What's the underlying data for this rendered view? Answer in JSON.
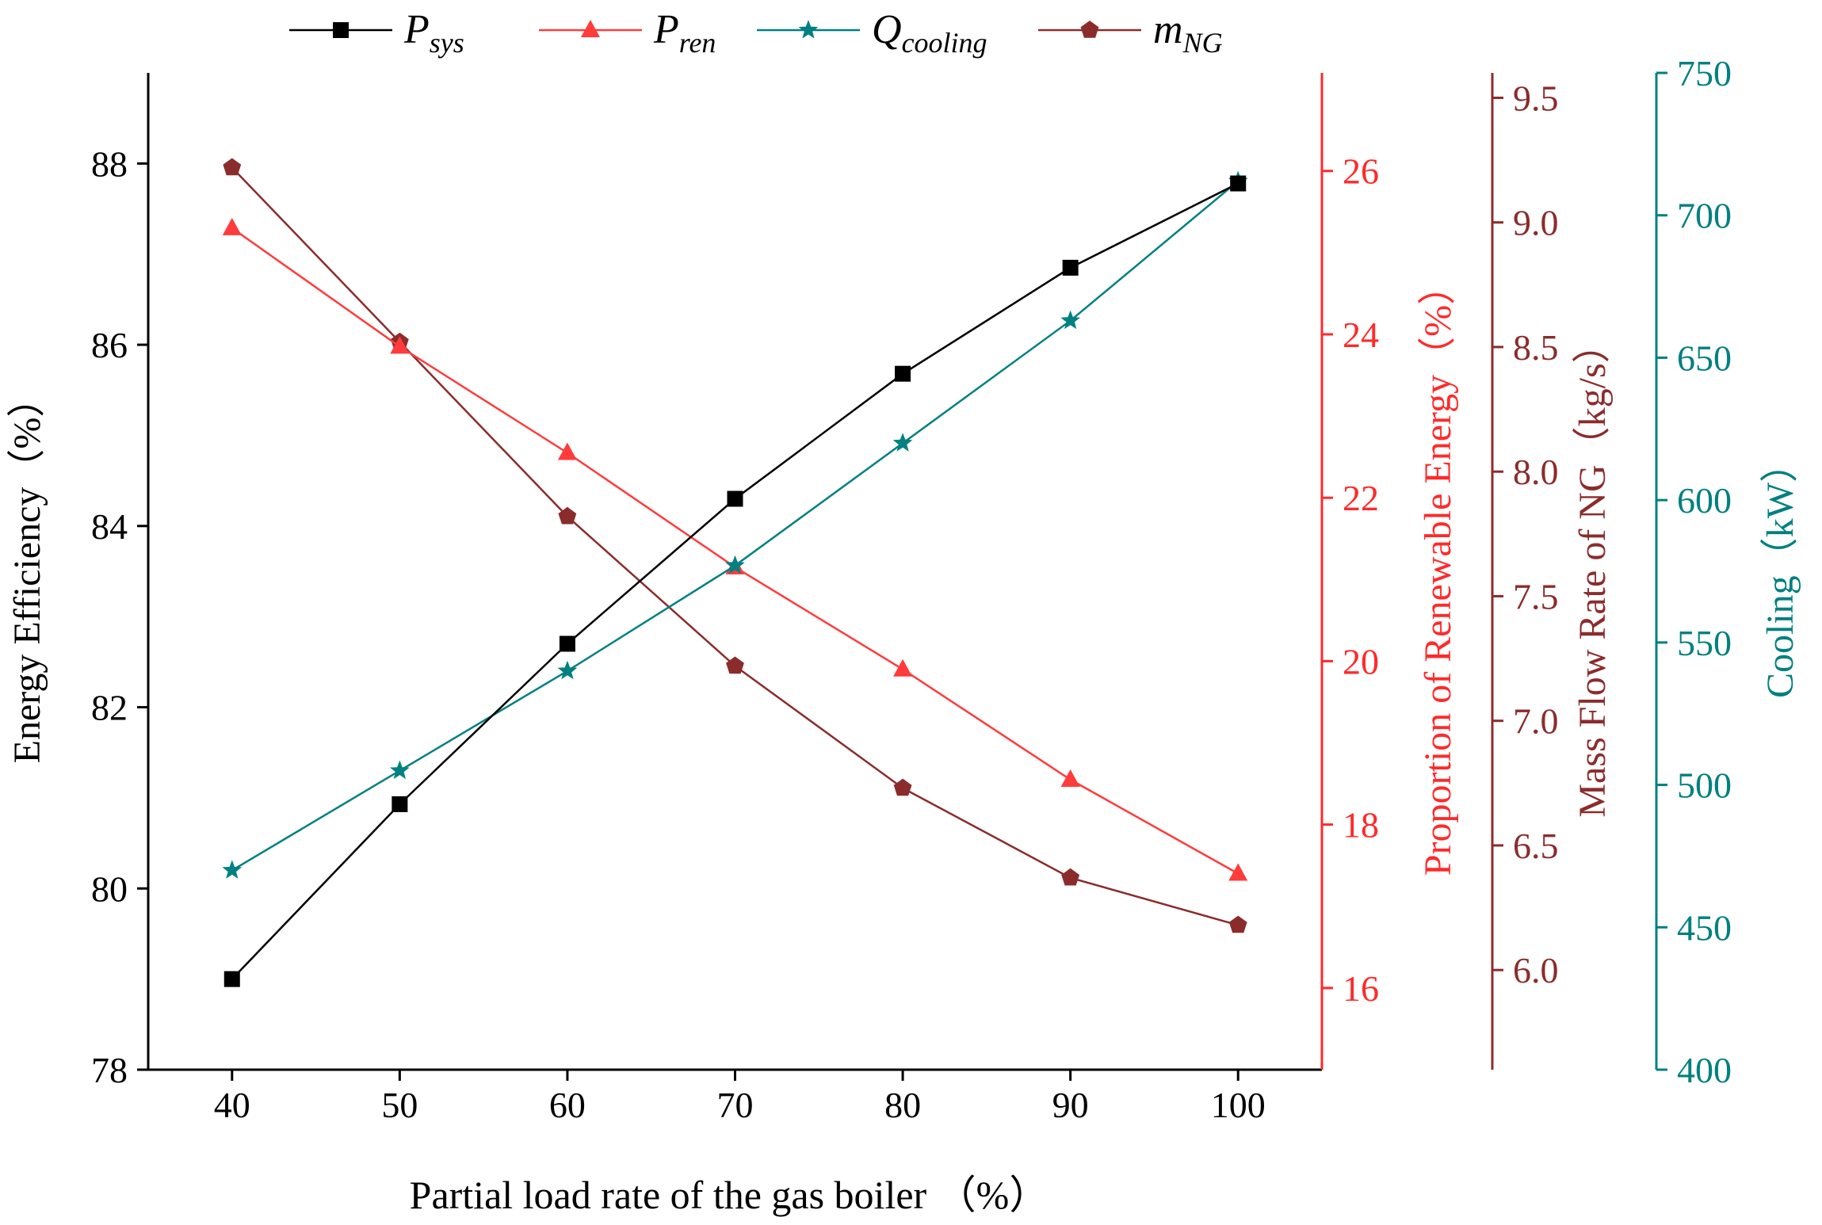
{
  "chart_data": {
    "type": "line",
    "x": [
      40,
      50,
      60,
      70,
      80,
      90,
      100
    ],
    "xlabel": "Partial load rate of the gas boiler （%）",
    "xlim": [
      35,
      105
    ],
    "xticks": [
      40,
      50,
      60,
      70,
      80,
      90,
      100
    ],
    "grid": false,
    "legend_position": "top",
    "axes": [
      {
        "id": "energy",
        "label": "Energy Efficiency（%）",
        "range": [
          78,
          89
        ],
        "ticks": [
          78,
          80,
          82,
          84,
          86,
          88
        ],
        "color": "#000000",
        "side": "left"
      },
      {
        "id": "renewable",
        "label": "Proportion of Renewable Energy（%）",
        "range": [
          15,
          27.2
        ],
        "ticks": [
          16,
          18,
          20,
          22,
          24,
          26
        ],
        "color": "#ff2a2a",
        "side": "right"
      },
      {
        "id": "massflow",
        "label": "Mass Flow Rate of NG（kg/s）",
        "range": [
          5.6,
          9.6
        ],
        "ticks": [
          6.0,
          6.5,
          7.0,
          7.5,
          8.0,
          8.5,
          9.0,
          9.5
        ],
        "tick_labels": [
          "6.0",
          "6.5",
          "7.0",
          "7.5",
          "8.0",
          "8.5",
          "9.0",
          "9.5"
        ],
        "color": "#8b2c2c",
        "side": "right"
      },
      {
        "id": "cooling",
        "label": "Cooling（kW）",
        "range": [
          400,
          750
        ],
        "ticks": [
          400,
          450,
          500,
          550,
          600,
          650,
          700,
          750
        ],
        "color": "#008080",
        "side": "right"
      }
    ],
    "series": [
      {
        "name": "P_sys",
        "legend_main": "P",
        "legend_sub": "sys",
        "axis": "energy",
        "color": "#000000",
        "marker": "square",
        "values": [
          79.0,
          80.93,
          82.7,
          84.3,
          85.68,
          86.85,
          87.78
        ]
      },
      {
        "name": "P_ren",
        "legend_main": "P",
        "legend_sub": "ren",
        "axis": "renewable",
        "color": "#ff3b3b",
        "marker": "triangle",
        "values": [
          25.3,
          23.85,
          22.55,
          21.15,
          19.9,
          18.55,
          17.4
        ]
      },
      {
        "name": "Q_cooling",
        "legend_main": "Q",
        "legend_sub": "cooling",
        "axis": "cooling",
        "color": "#008080",
        "marker": "star",
        "values": [
          470,
          505,
          540,
          577,
          620,
          663,
          712
        ]
      },
      {
        "name": "m_NG",
        "legend_main": "m",
        "legend_sub": "NG",
        "axis": "massflow",
        "color": "#8b2c2c",
        "marker": "pentagon",
        "values": [
          9.22,
          8.52,
          7.82,
          7.22,
          6.73,
          6.37,
          6.18
        ]
      }
    ]
  }
}
